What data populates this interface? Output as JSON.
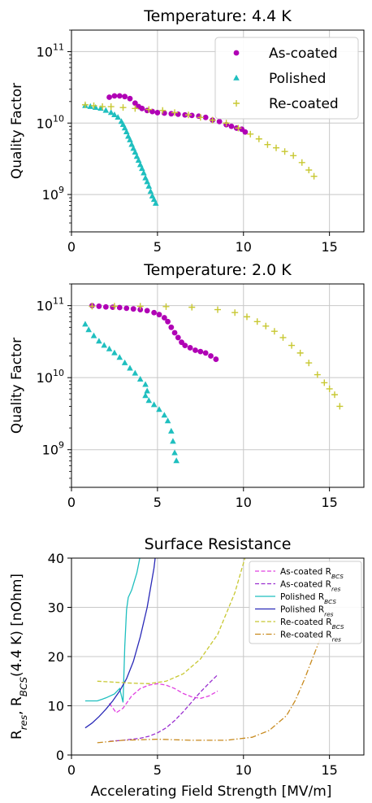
{
  "chart_data": [
    {
      "type": "scatter",
      "title": "Temperature: 4.4 K",
      "xlabel": "",
      "ylabel": "Quality Factor",
      "yscale": "log",
      "xlim": [
        0,
        17
      ],
      "ylim": [
        300000000.0,
        200000000000.0
      ],
      "grid": true,
      "legend": "top-right",
      "xticks": [
        0,
        5,
        10,
        15
      ],
      "xtick_labels": [
        "0",
        "5",
        "10",
        "15"
      ],
      "yticks": [
        1000000000.0,
        10000000000.0,
        100000000000.0
      ],
      "ytick_labels": [
        "10^9",
        "10^10",
        "10^11"
      ],
      "series": [
        {
          "name": "As-coated",
          "marker": "circle",
          "color": "#b000b5",
          "x": [
            2.2,
            2.5,
            2.8,
            3.1,
            3.4,
            3.7,
            3.9,
            4.1,
            4.4,
            4.7,
            5.0,
            5.4,
            5.8,
            6.2,
            6.6,
            7.0,
            7.4,
            7.8,
            8.2,
            8.6,
            9.0,
            9.3,
            9.6,
            9.9,
            10.1
          ],
          "y": [
            23000000000.0,
            24000000000.0,
            24000000000.0,
            23500000000.0,
            22000000000.0,
            19000000000.0,
            17000000000.0,
            16000000000.0,
            15000000000.0,
            14500000000.0,
            14000000000.0,
            13800000000.0,
            13500000000.0,
            13300000000.0,
            13000000000.0,
            12800000000.0,
            12500000000.0,
            12000000000.0,
            11000000000.0,
            10500000000.0,
            9500000000.0,
            9000000000.0,
            8500000000.0,
            8200000000.0,
            7500000000.0
          ]
        },
        {
          "name": "Polished",
          "marker": "triangle",
          "color": "#1fbfbf",
          "x": [
            0.8,
            1.1,
            1.4,
            1.7,
            2.0,
            2.3,
            2.5,
            2.7,
            2.9,
            3.0,
            3.1,
            3.2,
            3.3,
            3.4,
            3.5,
            3.6,
            3.7,
            3.8,
            3.9,
            4.0,
            4.1,
            4.2,
            4.3,
            4.4,
            4.5,
            4.6,
            4.7,
            4.8,
            4.9
          ],
          "y": [
            17500000000.0,
            17000000000.0,
            16500000000.0,
            16000000000.0,
            15000000000.0,
            14000000000.0,
            13000000000.0,
            12000000000.0,
            10500000000.0,
            9500000000.0,
            8500000000.0,
            7500000000.0,
            6500000000.0,
            5800000000.0,
            5000000000.0,
            4400000000.0,
            3900000000.0,
            3400000000.0,
            3000000000.0,
            2600000000.0,
            2300000000.0,
            2000000000.0,
            1700000000.0,
            1500000000.0,
            1300000000.0,
            1100000000.0,
            950000000.0,
            850000000.0,
            750000000.0
          ]
        },
        {
          "name": "Re-coated",
          "marker": "plus",
          "color": "#c8c832",
          "x": [
            0.8,
            1.3,
            1.8,
            2.3,
            3.0,
            3.7,
            4.5,
            5.3,
            6.0,
            6.8,
            7.5,
            8.2,
            9.0,
            9.7,
            10.4,
            10.9,
            11.4,
            11.9,
            12.4,
            12.9,
            13.4,
            13.8,
            14.1
          ],
          "y": [
            18000000000.0,
            17500000000.0,
            17000000000.0,
            17000000000.0,
            16500000000.0,
            16000000000.0,
            15500000000.0,
            15000000000.0,
            14000000000.0,
            13000000000.0,
            12000000000.0,
            11000000000.0,
            10000000000.0,
            8500000000.0,
            7000000000.0,
            6000000000.0,
            5000000000.0,
            4500000000.0,
            4000000000.0,
            3500000000.0,
            2800000000.0,
            2200000000.0,
            1800000000.0
          ]
        }
      ]
    },
    {
      "type": "scatter",
      "title": "Temperature: 2.0 K",
      "xlabel": "",
      "ylabel": "Quality Factor",
      "yscale": "log",
      "xlim": [
        0,
        17
      ],
      "ylim": [
        300000000.0,
        200000000000.0
      ],
      "grid": true,
      "xticks": [
        0,
        5,
        10,
        15
      ],
      "xtick_labels": [
        "0",
        "5",
        "10",
        "15"
      ],
      "yticks": [
        1000000000.0,
        10000000000.0,
        100000000000.0
      ],
      "ytick_labels": [
        "10^9",
        "10^10",
        "10^11"
      ],
      "series": [
        {
          "name": "As-coated",
          "marker": "circle",
          "color": "#b000b5",
          "x": [
            1.2,
            1.6,
            2.0,
            2.4,
            2.8,
            3.2,
            3.6,
            4.0,
            4.4,
            4.8,
            5.1,
            5.4,
            5.6,
            5.8,
            6.0,
            6.2,
            6.4,
            6.6,
            6.9,
            7.2,
            7.5,
            7.8,
            8.1,
            8.4
          ],
          "y": [
            100000000000.0,
            98000000000.0,
            96000000000.0,
            95000000000.0,
            94000000000.0,
            92000000000.0,
            90000000000.0,
            88000000000.0,
            85000000000.0,
            80000000000.0,
            75000000000.0,
            68000000000.0,
            60000000000.0,
            50000000000.0,
            42000000000.0,
            36000000000.0,
            31000000000.0,
            28000000000.0,
            26000000000.0,
            24000000000.0,
            23000000000.0,
            22000000000.0,
            20000000000.0,
            18000000000.0
          ]
        },
        {
          "name": "Polished",
          "marker": "triangle",
          "color": "#1fbfbf",
          "x": [
            0.8,
            1.0,
            1.3,
            1.6,
            1.9,
            2.2,
            2.5,
            2.8,
            3.1,
            3.4,
            3.7,
            4.0,
            4.3,
            4.4,
            4.3,
            4.5,
            4.8,
            5.1,
            5.4,
            5.6,
            5.8,
            5.9,
            6.0,
            6.1
          ],
          "y": [
            55000000000.0,
            46000000000.0,
            38000000000.0,
            32000000000.0,
            28000000000.0,
            25000000000.0,
            22000000000.0,
            19000000000.0,
            16000000000.0,
            13500000000.0,
            11500000000.0,
            9500000000.0,
            8000000000.0,
            6500000000.0,
            5600000000.0,
            4800000000.0,
            4200000000.0,
            3600000000.0,
            3000000000.0,
            2500000000.0,
            1800000000.0,
            1300000000.0,
            900000000.0,
            700000000.0
          ]
        },
        {
          "name": "Re-coated",
          "marker": "plus",
          "color": "#c8c832",
          "x": [
            1.2,
            2.5,
            4.0,
            5.5,
            7.0,
            8.5,
            9.5,
            10.2,
            10.8,
            11.3,
            11.8,
            12.3,
            12.8,
            13.3,
            13.8,
            14.3,
            14.7,
            15.0,
            15.3,
            15.6
          ],
          "y": [
            98000000000.0,
            98000000000.0,
            98000000000.0,
            97000000000.0,
            95000000000.0,
            88000000000.0,
            80000000000.0,
            70000000000.0,
            60000000000.0,
            52000000000.0,
            44000000000.0,
            36000000000.0,
            28000000000.0,
            22000000000.0,
            16000000000.0,
            11000000000.0,
            8500000000.0,
            7000000000.0,
            5800000000.0,
            4000000000.0
          ]
        }
      ]
    },
    {
      "type": "line",
      "title": "Surface Resistance",
      "xlabel": "Accelerating Field Strength [MV/m]",
      "ylabel": "R_res, R_BCS(4.4 K) [nOhm]",
      "xlim": [
        0,
        17
      ],
      "ylim": [
        0,
        40
      ],
      "grid": true,
      "legend": "top-right",
      "xticks": [
        0,
        5,
        10,
        15
      ],
      "xtick_labels": [
        "0",
        "5",
        "10",
        "15"
      ],
      "yticks": [
        0,
        10,
        20,
        30,
        40
      ],
      "ytick_labels": [
        "0",
        "10",
        "20",
        "30",
        "40"
      ],
      "series": [
        {
          "name": "As-coated R_BCS",
          "style": "dashed",
          "color": "#e040e0",
          "x": [
            2.2,
            2.6,
            3.0,
            3.5,
            4.0,
            4.5,
            5.0,
            5.5,
            6.0,
            6.5,
            7.0,
            7.5,
            8.0,
            8.5
          ],
          "y": [
            10.5,
            8.6,
            9.5,
            12.0,
            13.5,
            14.2,
            14.5,
            14.2,
            13.5,
            12.5,
            11.8,
            11.5,
            12.0,
            13.0
          ]
        },
        {
          "name": "As-coated R_res",
          "style": "dashed",
          "color": "#9a2fd0",
          "x": [
            2.2,
            3.0,
            4.0,
            4.5,
            5.0,
            5.5,
            6.0,
            6.5,
            7.0,
            7.5,
            8.0,
            8.5
          ],
          "y": [
            2.8,
            3.0,
            3.4,
            3.8,
            4.5,
            5.5,
            7.0,
            8.8,
            10.8,
            12.8,
            14.6,
            16.3
          ]
        },
        {
          "name": "Polished R_BCS",
          "style": "solid",
          "color": "#1fbfbf",
          "x": [
            0.8,
            1.5,
            2.0,
            2.5,
            2.8,
            3.0,
            3.1,
            3.2,
            3.3,
            3.5,
            3.8,
            4.0,
            4.2
          ],
          "y": [
            11.0,
            11.0,
            11.6,
            12.4,
            13.5,
            10.7,
            22.0,
            29.5,
            32.0,
            33.5,
            37.0,
            40.5,
            45.0
          ]
        },
        {
          "name": "Polished R_res",
          "style": "solid",
          "color": "#2a2ab8",
          "x": [
            0.8,
            1.2,
            1.6,
            2.0,
            2.4,
            2.8,
            3.2,
            3.6,
            4.0,
            4.4,
            4.8,
            5.0
          ],
          "y": [
            5.5,
            6.5,
            7.8,
            9.3,
            11.0,
            13.0,
            15.5,
            19.0,
            24.0,
            30.0,
            38.0,
            44.0
          ]
        },
        {
          "name": "Re-coated R_BCS",
          "style": "dashed",
          "color": "#c8c832",
          "x": [
            1.5,
            2.5,
            3.5,
            4.5,
            5.5,
            6.5,
            7.5,
            8.5,
            9.5,
            10.0,
            10.5
          ],
          "y": [
            15.0,
            14.8,
            14.6,
            14.5,
            15.0,
            16.5,
            19.5,
            24.5,
            33.0,
            39.0,
            45.0
          ]
        },
        {
          "name": "Re-coated R_res",
          "style": "dashdot",
          "color": "#c88a1e",
          "x": [
            1.5,
            3.0,
            5.0,
            7.0,
            9.0,
            10.5,
            11.5,
            12.5,
            13.0,
            13.5,
            14.0,
            14.5
          ],
          "y": [
            2.5,
            3.0,
            3.2,
            3.0,
            3.0,
            3.6,
            5.0,
            8.0,
            11.0,
            15.0,
            19.5,
            24.0
          ]
        }
      ]
    }
  ]
}
